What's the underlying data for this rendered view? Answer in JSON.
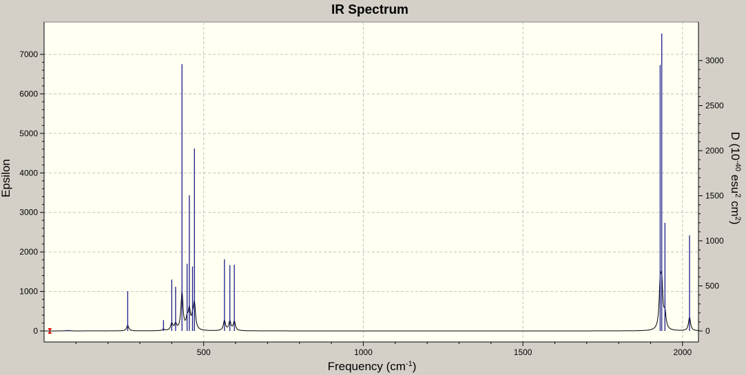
{
  "chart_data": {
    "type": "line",
    "title": "IR Spectrum",
    "xlabel": "Frequency (cm",
    "xlabel_sup": "-1",
    "xlabel_end": ")",
    "ylabel_left": "Epsilon",
    "ylabel_right_parts": [
      {
        "t": "D (10"
      },
      {
        "t": "-40",
        "sup": true
      },
      {
        "t": " esu"
      },
      {
        "t": "2",
        "sup": true
      },
      {
        "t": " cm"
      },
      {
        "t": "2",
        "sup": true
      },
      {
        "t": ")"
      }
    ],
    "xlim": [
      0,
      2050
    ],
    "ylim_left": [
      0,
      7800
    ],
    "ylim_right": [
      0,
      3360
    ],
    "x_ticks": [
      500,
      1000,
      1500,
      2000
    ],
    "y_left_ticks": [
      0,
      1000,
      2000,
      3000,
      4000,
      5000,
      6000,
      7000
    ],
    "y_right_ticks": [
      0,
      500,
      1000,
      1500,
      2000,
      2500,
      3000
    ],
    "grid": true,
    "colors": {
      "plot_bg": "#fffff2",
      "grid": "#c0c0c0",
      "spectrum": "#000000",
      "sticks": "#1a1a8c",
      "marker": "#e00000"
    },
    "envelope_halfwidth": 4,
    "sticks": [
      {
        "x": 50,
        "d": 5
      },
      {
        "x": 68,
        "d": 10
      },
      {
        "x": 75,
        "d": 12
      },
      {
        "x": 82,
        "d": 10
      },
      {
        "x": 130,
        "d": 5
      },
      {
        "x": 162,
        "d": 3
      },
      {
        "x": 210,
        "d": 4
      },
      {
        "x": 262,
        "d": 440
      },
      {
        "x": 374,
        "d": 120
      },
      {
        "x": 400,
        "d": 570
      },
      {
        "x": 412,
        "d": 490
      },
      {
        "x": 432,
        "d": 2960
      },
      {
        "x": 448,
        "d": 745
      },
      {
        "x": 455,
        "d": 1505
      },
      {
        "x": 465,
        "d": 715
      },
      {
        "x": 471,
        "d": 2025
      },
      {
        "x": 565,
        "d": 795
      },
      {
        "x": 582,
        "d": 730
      },
      {
        "x": 596,
        "d": 735
      },
      {
        "x": 1930,
        "d": 2950
      },
      {
        "x": 1935,
        "d": 3300
      },
      {
        "x": 1945,
        "d": 1200
      },
      {
        "x": 2022,
        "d": 1060
      }
    ]
  }
}
